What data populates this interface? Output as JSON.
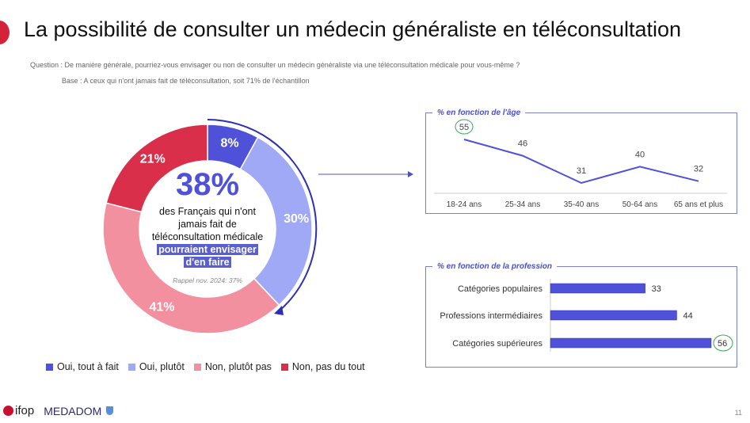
{
  "title": "La possibilité de consulter un médecin généraliste en téléconsultation",
  "question": "Question : De manière générale, pourriez-vous envisager ou non de consulter un médecin généraliste via une téléconsultation médicale pour vous-même ?",
  "base": "Base : A ceux qui n'ont jamais fait de téléconsultation, soit 71% de l'échantillon",
  "center": {
    "big": "38%",
    "line1": "des Français qui n'ont",
    "line2": "jamais fait de",
    "line3": "téléconsultation médicale",
    "hl1": "pourraient  envisager",
    "hl2": "d'en faire",
    "rappel": "Rappel nov. 2024: 37%"
  },
  "footer": {
    "logo1": "ifop",
    "logo2": "MEDADOM"
  },
  "page_number": "11",
  "chart_data": [
    {
      "type": "pie",
      "donut": true,
      "categories": [
        "Oui, tout à fait",
        "Oui, plutôt",
        "Non, plutôt pas",
        "Non, pas du tout"
      ],
      "values": [
        8,
        30,
        41,
        21
      ],
      "labels": [
        "8%",
        "30%",
        "41%",
        "21%"
      ],
      "colors": [
        "#4f52d9",
        "#a0a9f5",
        "#f3909f",
        "#d92f4a"
      ],
      "legend": "bottom"
    },
    {
      "type": "line",
      "title": "% en fonction de l'âge",
      "categories": [
        "18-24 ans",
        "25-34 ans",
        "35-40 ans",
        "50-64 ans",
        "65 ans et plus"
      ],
      "values": [
        55,
        46,
        31,
        40,
        32
      ],
      "highlight": "18-24 ans",
      "color": "#4f52d9"
    },
    {
      "type": "bar",
      "orientation": "horizontal",
      "title": "% en fonction de la profession",
      "categories": [
        "Catégories populaires",
        "Professions intermédiaires",
        "Catégories supérieures"
      ],
      "values": [
        33,
        44,
        56
      ],
      "highlight": "Catégories supérieures",
      "color": "#4f52d9"
    }
  ]
}
